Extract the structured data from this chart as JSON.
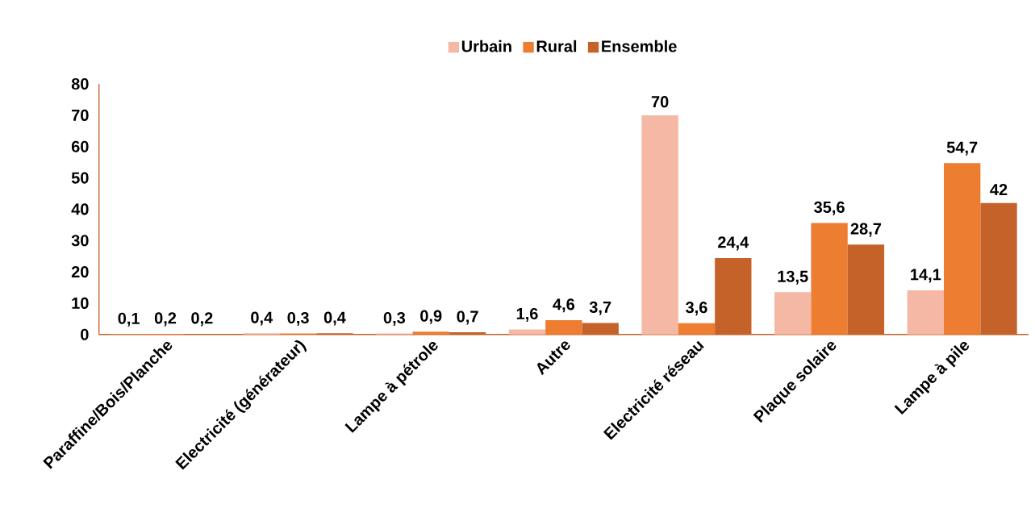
{
  "chart_data": {
    "type": "bar",
    "categories": [
      "Paraffine/Bois/Planche",
      "Electricité (générateur)",
      "Lampe à pétrole",
      "Autre",
      "Electricité réseau",
      "Plaque solaire",
      "Lampe à pile"
    ],
    "series": [
      {
        "name": "Urbain",
        "color": "#f4b8a4",
        "values": [
          0.1,
          0.4,
          0.3,
          1.6,
          70,
          13.5,
          14.1
        ],
        "value_labels": [
          "0,1",
          "0,4",
          "0,3",
          "1,6",
          "70",
          "13,5",
          "14,1"
        ]
      },
      {
        "name": "Rural",
        "color": "#ed7d31",
        "values": [
          0.2,
          0.3,
          0.9,
          4.6,
          3.6,
          35.6,
          54.7
        ],
        "value_labels": [
          "0,2",
          "0,3",
          "0,9",
          "4,6",
          "3,6",
          "35,6",
          "54,7"
        ]
      },
      {
        "name": "Ensemble",
        "color": "#c5622a",
        "values": [
          0.2,
          0.4,
          0.7,
          3.7,
          24.4,
          28.7,
          42
        ],
        "value_labels": [
          "0,2",
          "0,4",
          "0,7",
          "3,7",
          "24,4",
          "28,7",
          "42"
        ]
      }
    ],
    "ylim": [
      0,
      80
    ],
    "yticks": [
      0,
      10,
      20,
      30,
      40,
      50,
      60,
      70,
      80
    ],
    "grid": false,
    "legend": "top"
  }
}
